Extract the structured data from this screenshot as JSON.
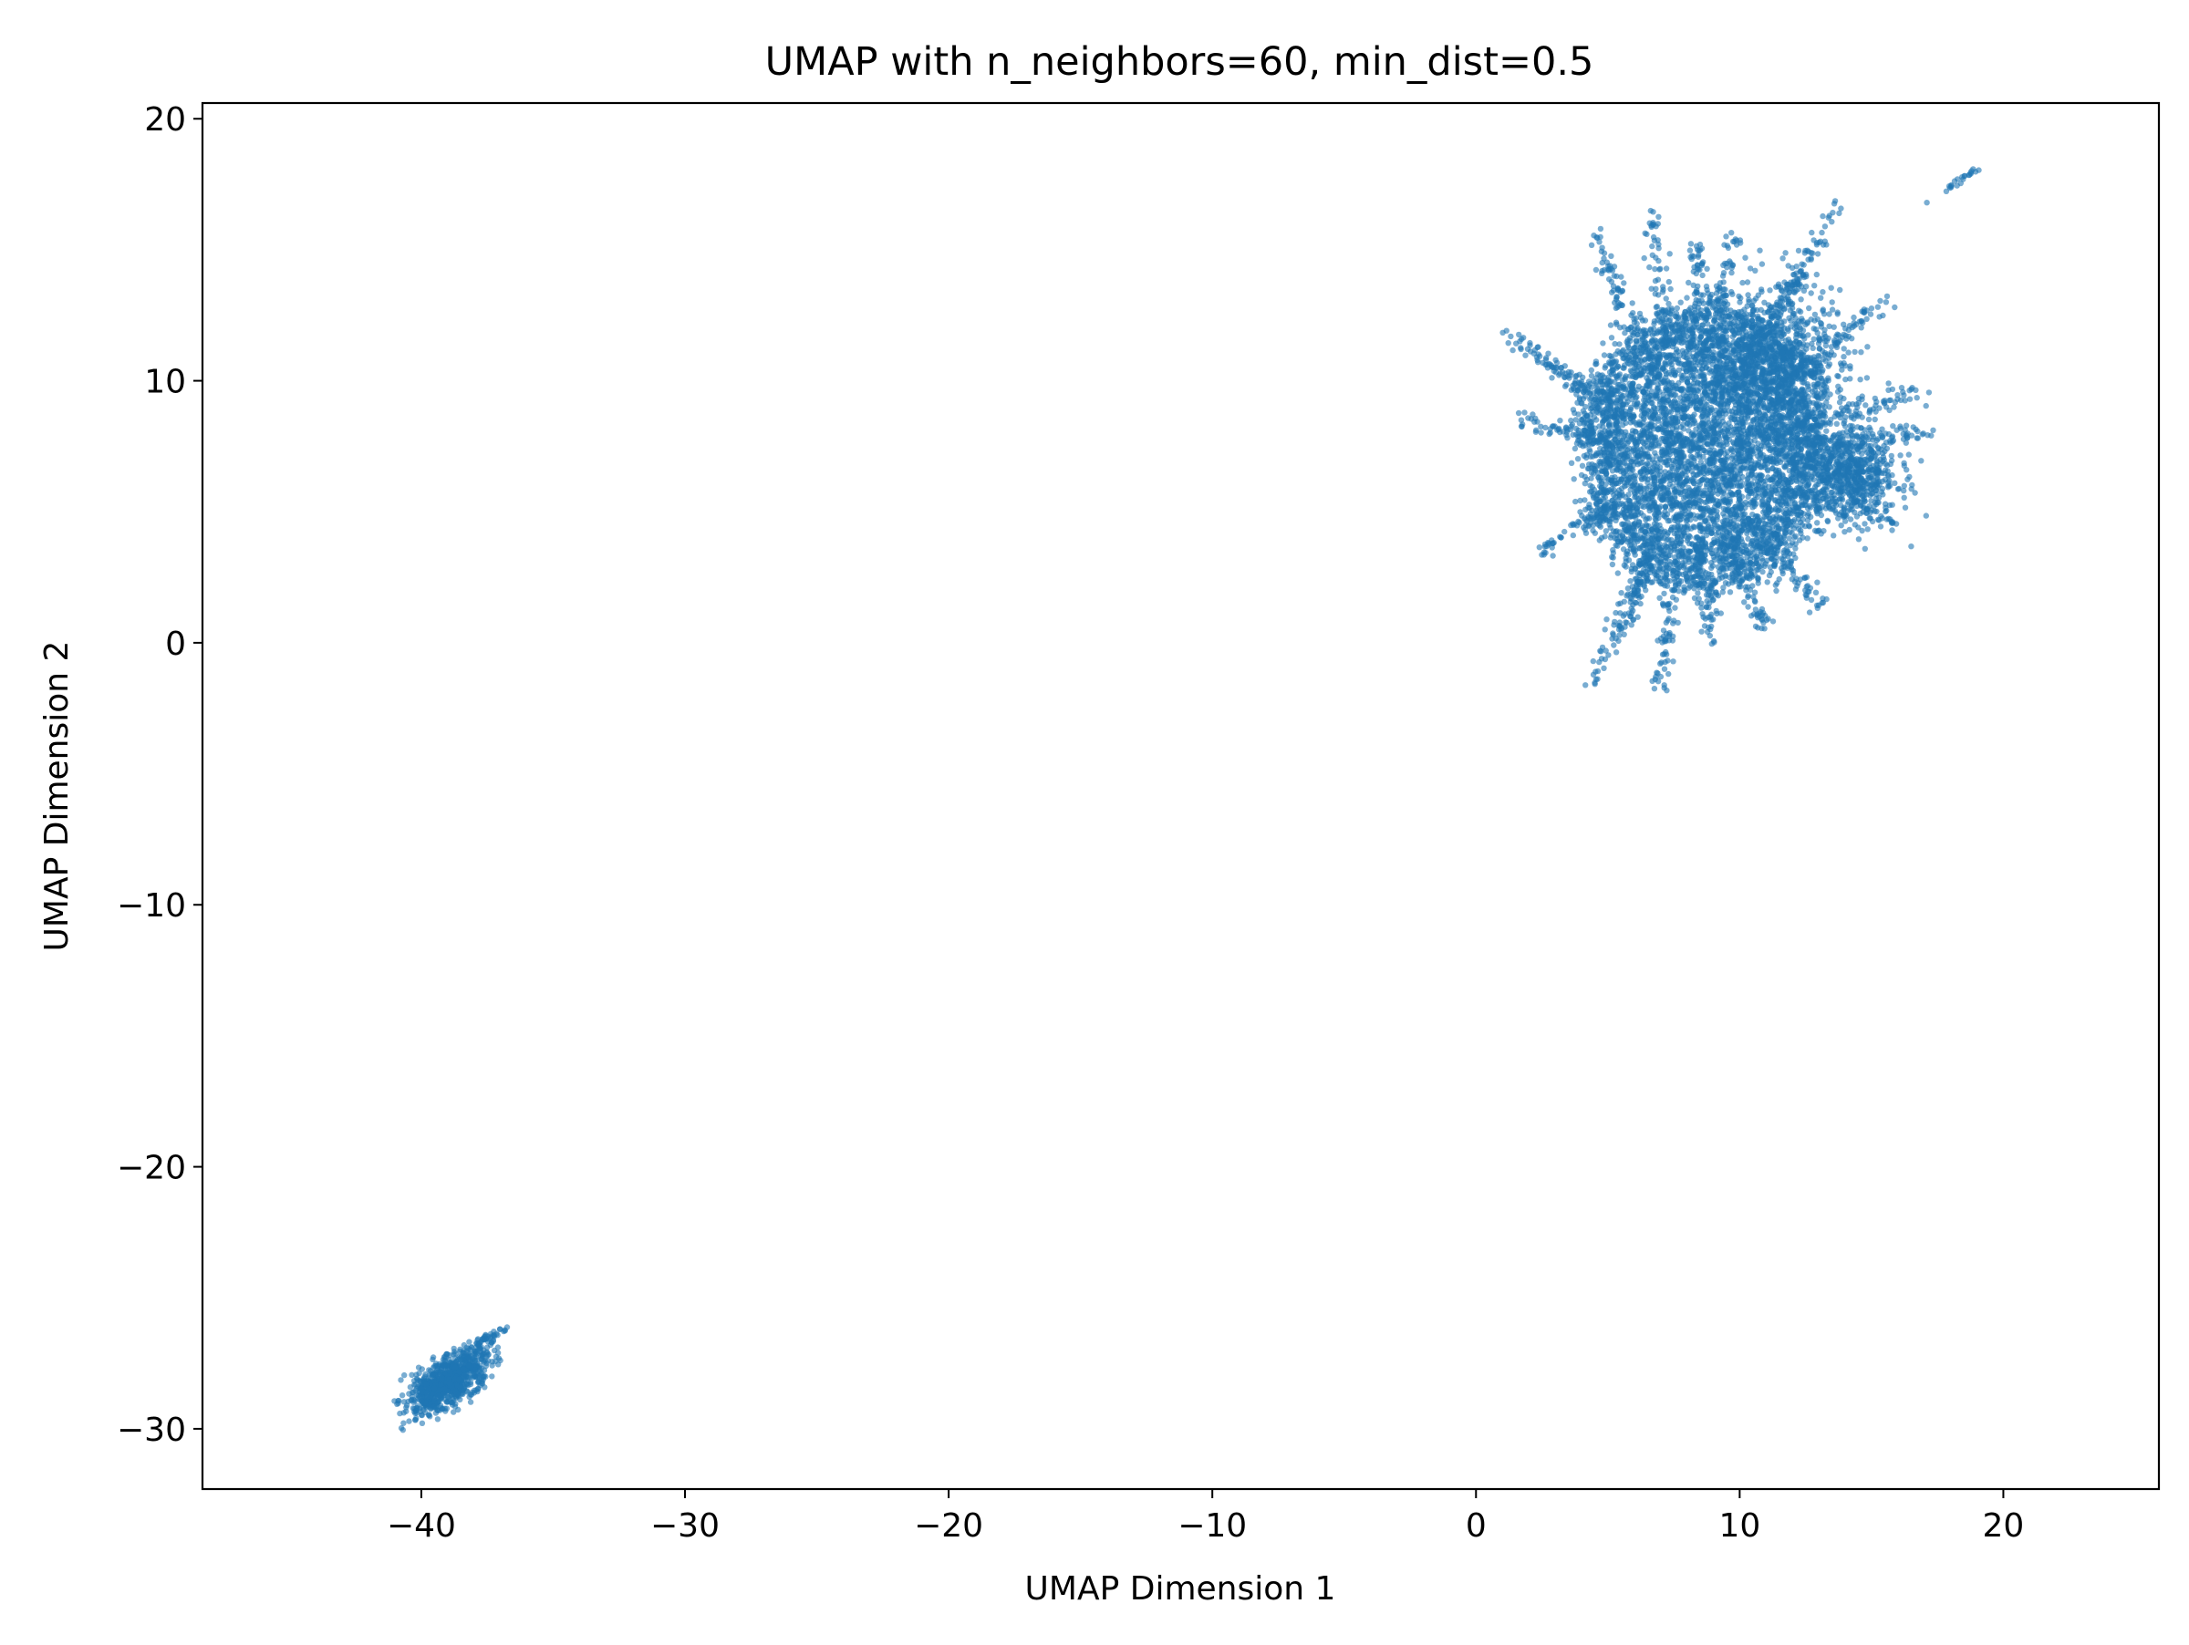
{
  "chart_data": {
    "type": "scatter",
    "title": "UMAP with n_neighbors=60, min_dist=0.5",
    "xlabel": "UMAP Dimension 1",
    "ylabel": "UMAP Dimension 2",
    "xlim": [
      -48.3,
      25.9
    ],
    "ylim": [
      -32.3,
      20.6
    ],
    "xticks": [
      -40,
      -30,
      -20,
      -10,
      0,
      10,
      20
    ],
    "yticks": [
      -30,
      -20,
      -10,
      0,
      10,
      20
    ],
    "xtick_labels": [
      "−40",
      "−30",
      "−20",
      "−10",
      "0",
      "10",
      "20"
    ],
    "ytick_labels": [
      "−30",
      "−20",
      "−10",
      "0",
      "10",
      "20"
    ],
    "grid": false,
    "legend": "none",
    "marker_color": "#1f77b4",
    "clusters": [
      {
        "center": [
          8.0,
          7.0
        ],
        "x_extent": [
          1.0,
          19.0
        ],
        "y_extent": [
          -2.0,
          18.1
        ],
        "shape": "dense roughly circular blob with radial streaks",
        "approx_radius": [
          4.2,
          5.0
        ]
      },
      {
        "center": [
          -39.0,
          -28.2
        ],
        "x_extent": [
          -41.0,
          -36.8
        ],
        "y_extent": [
          -30.0,
          -26.0
        ],
        "shape": "small elongated blob, tilted up-right",
        "approx_radius": [
          1.2,
          1.2
        ]
      }
    ]
  }
}
